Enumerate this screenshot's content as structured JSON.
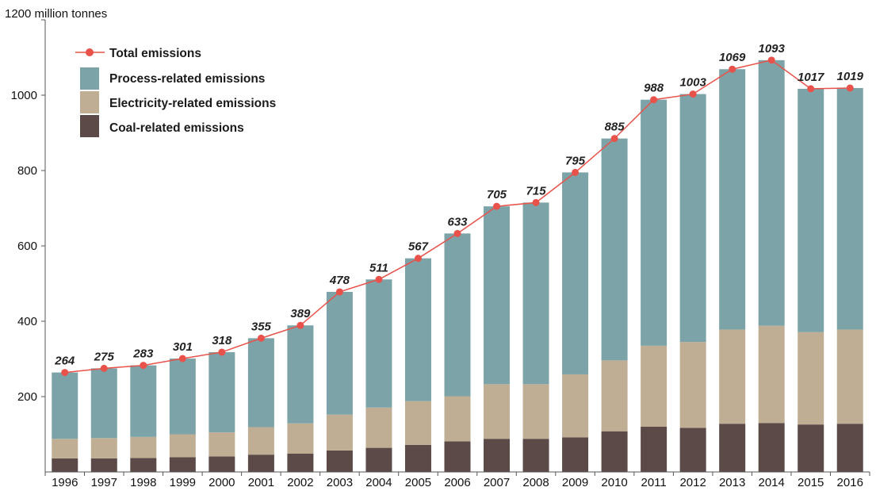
{
  "chart_data": {
    "type": "bar",
    "stacked": true,
    "y_unit_label": "1200 million tonnes",
    "ylim": [
      0,
      1200
    ],
    "yticks": [
      200,
      400,
      600,
      800,
      1000
    ],
    "grid": false,
    "legend_position": "top-left",
    "categories": [
      "1996",
      "1997",
      "1998",
      "1999",
      "2000",
      "2001",
      "2002",
      "2003",
      "2004",
      "2005",
      "2006",
      "2007",
      "2008",
      "2009",
      "2010",
      "2011",
      "2012",
      "2013",
      "2014",
      "2015",
      "2016"
    ],
    "series": [
      {
        "name": "Coal-related emissions",
        "color": "#5b4a47",
        "values": [
          36,
          36,
          37,
          39,
          41,
          46,
          49,
          57,
          64,
          72,
          81,
          88,
          88,
          92,
          108,
          120,
          117,
          128,
          130,
          126,
          128
        ]
      },
      {
        "name": "Electricity-related emissions",
        "color": "#bfae94",
        "values": [
          52,
          54,
          56,
          61,
          64,
          73,
          80,
          95,
          107,
          116,
          120,
          145,
          145,
          167,
          188,
          215,
          228,
          250,
          258,
          245,
          250
        ]
      },
      {
        "name": "Process-related emissions",
        "color": "#7ca4a8",
        "values": [
          176,
          185,
          190,
          201,
          213,
          236,
          260,
          326,
          340,
          379,
          432,
          472,
          482,
          536,
          589,
          653,
          658,
          691,
          705,
          646,
          641
        ]
      }
    ],
    "line_series": {
      "name": "Total emissions",
      "color": "#e8524a",
      "values": [
        264,
        275,
        283,
        301,
        318,
        355,
        389,
        478,
        511,
        567,
        633,
        705,
        715,
        795,
        885,
        988,
        1003,
        1069,
        1093,
        1017,
        1019
      ]
    },
    "data_labels": [
      "264",
      "275",
      "283",
      "301",
      "318",
      "355",
      "389",
      "478",
      "511",
      "567",
      "633",
      "705",
      "715",
      "795",
      "885",
      "988",
      "1003",
      "1069",
      "1093",
      "1017",
      "1019"
    ],
    "ytick_labels": [
      "200",
      "400",
      "600",
      "800",
      "1000"
    ],
    "legend": {
      "total": "Total emissions",
      "process": "Process-related emissions",
      "electricity": "Electricity-related emissions",
      "coal": "Coal-related emissions"
    }
  }
}
